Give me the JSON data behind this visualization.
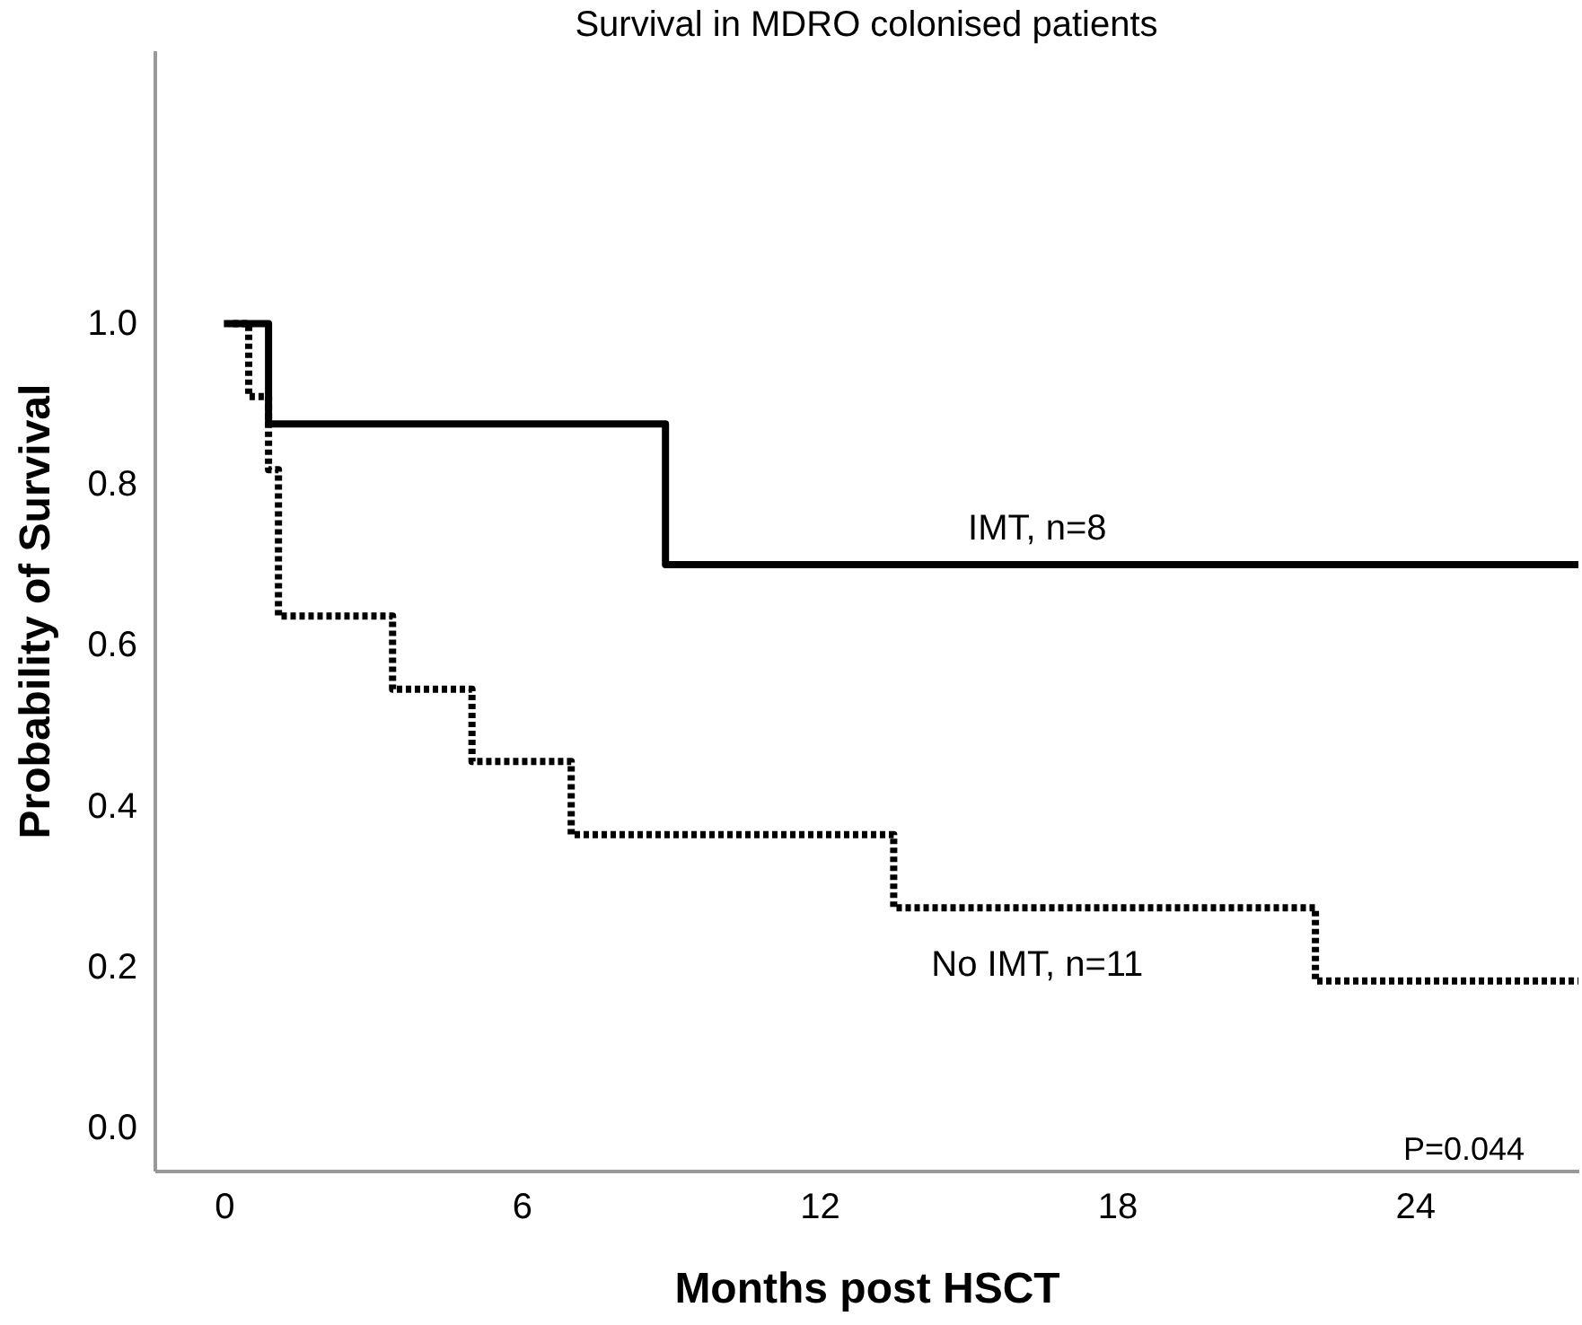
{
  "chart_data": {
    "type": "step",
    "title": "Survival in MDRO colonised patients",
    "xlabel": "Months post HSCT",
    "ylabel": "Probability of Survival",
    "series": [
      {
        "name": "IMT, n=8",
        "color": "#000000",
        "line_style": "solid",
        "x": [
          0.1,
          0.9,
          8.9,
          27.3
        ],
        "values": [
          1.0,
          0.875,
          0.7,
          0.7
        ]
      },
      {
        "name": "No IMT, n=11",
        "color": "#000000",
        "line_style": "dotted",
        "x": [
          0,
          0.5,
          0.9,
          1.1,
          3.4,
          5.0,
          7.0,
          13.5,
          22.0,
          27.3
        ],
        "values": [
          1.0,
          0.909,
          0.818,
          0.636,
          0.545,
          0.455,
          0.364,
          0.273,
          0.182,
          0.182
        ]
      }
    ],
    "annotations": [
      "P=0.044"
    ],
    "xlim": [
      -1.4,
      27.3
    ],
    "xticks": [
      0,
      6,
      12,
      18,
      24
    ],
    "ylim": [
      -0.054,
      1.34
    ],
    "yticks": [
      {
        "value": 0,
        "label": "0.0"
      },
      0.2,
      0.4,
      0.6,
      0.8,
      {
        "value": 1,
        "label": "1.0"
      }
    ],
    "grid": false
  }
}
